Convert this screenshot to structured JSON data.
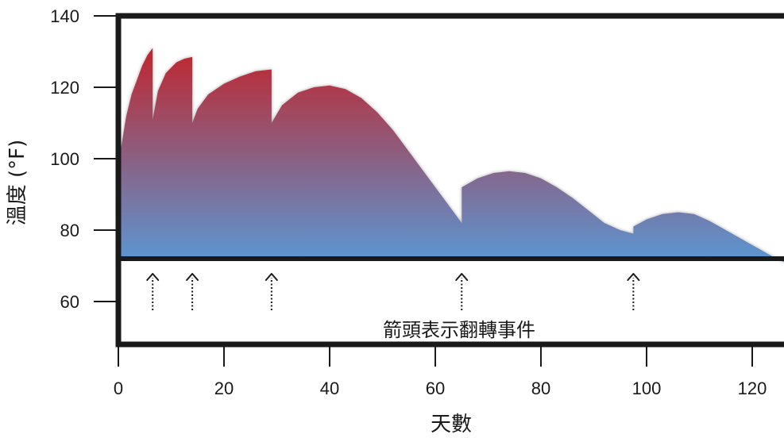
{
  "chart_data": {
    "type": "area",
    "xlabel": "天數",
    "ylabel": "溫度 (°F)",
    "annotation": "箭頭表示翻轉事件",
    "xlim": [
      0,
      126
    ],
    "ylim": [
      55,
      140
    ],
    "xticks": [
      0,
      20,
      40,
      60,
      80,
      100,
      120
    ],
    "yticks": [
      60,
      80,
      100,
      120,
      140
    ],
    "baseline": 72,
    "colors": {
      "top": "#c0262e",
      "bottom": "#5a97d3",
      "frame": "#1a1a1a"
    },
    "series": [
      {
        "x": [
          0.5,
          1.5,
          2.5,
          3.5,
          4.5,
          5.5,
          6.5,
          6.5,
          7.5,
          9,
          11,
          12.5,
          14,
          14,
          15,
          17,
          20,
          23,
          26,
          29,
          29,
          31,
          34,
          37,
          40,
          43,
          46,
          49,
          52,
          55,
          58,
          61,
          65,
          65,
          68,
          71,
          74,
          77,
          80,
          83,
          86,
          89,
          92,
          95,
          97.5,
          97.5,
          100,
          103,
          106,
          109,
          112,
          115,
          118,
          121,
          124,
          126
        ],
        "y": [
          103,
          112,
          118,
          122,
          126,
          129,
          131,
          111,
          119,
          124,
          127,
          128,
          128.5,
          110,
          114,
          118,
          121,
          123,
          124.5,
          125,
          110,
          115,
          118.5,
          120,
          120.5,
          119.5,
          117,
          113,
          108,
          102,
          96,
          90,
          82,
          92,
          94.5,
          96,
          96.5,
          96,
          94.5,
          92,
          89,
          85.5,
          82,
          80,
          79,
          81,
          83,
          84.5,
          85,
          84.5,
          82.5,
          80,
          77.5,
          75,
          72.5,
          71
        ]
      }
    ],
    "flip_events_x": [
      6.5,
      14,
      29,
      65,
      97.5
    ]
  }
}
